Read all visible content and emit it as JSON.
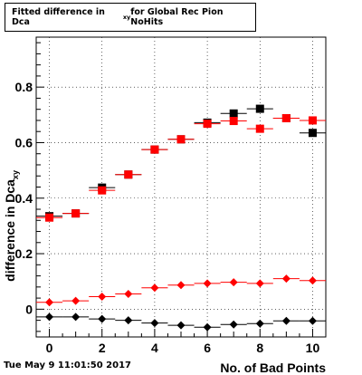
{
  "chart_data": {
    "type": "scatter",
    "title_main": "Fitted difference in Dca",
    "title_sub": "xy",
    "title_rest": " for Global Rec Pion NoHits",
    "xlabel": "No. of Bad Points",
    "ylabel_main": "difference in Dca",
    "ylabel_sub": "xy",
    "xlim": [
      -0.5,
      10.5
    ],
    "ylim": [
      -0.1,
      0.98
    ],
    "x_ticks": [
      0,
      2,
      4,
      6,
      8,
      10
    ],
    "y_ticks": [
      0,
      0.2,
      0.4,
      0.6,
      0.8
    ],
    "y_tick_labels": [
      "0",
      "0.2",
      "0.4",
      "0.6",
      "0.8"
    ],
    "x": [
      0,
      1,
      2,
      3,
      4,
      5,
      6,
      7,
      8,
      9,
      10
    ],
    "series": [
      {
        "marker": "square",
        "color": "#000000",
        "filled": true,
        "values": [
          0.335,
          0.345,
          0.438,
          0.485,
          0.575,
          0.612,
          0.672,
          0.705,
          0.722,
          0.688,
          0.635
        ]
      },
      {
        "marker": "square",
        "color": "#ff0000",
        "filled": true,
        "values": [
          0.33,
          0.345,
          0.428,
          0.485,
          0.575,
          0.612,
          0.668,
          0.678,
          0.65,
          0.688,
          0.68
        ]
      },
      {
        "marker": "diamond",
        "color": "#ff0000",
        "filled": true,
        "values": [
          0.025,
          0.03,
          0.045,
          0.055,
          0.077,
          0.087,
          0.093,
          0.097,
          0.093,
          0.11,
          0.103
        ]
      },
      {
        "marker": "diamond",
        "color": "#000000",
        "filled": true,
        "values": [
          -0.028,
          -0.028,
          -0.035,
          -0.04,
          -0.05,
          -0.058,
          -0.065,
          -0.055,
          -0.052,
          -0.042,
          -0.042
        ]
      }
    ]
  },
  "footer": {
    "timestamp": "Tue May  9 11:01:50 2017"
  }
}
